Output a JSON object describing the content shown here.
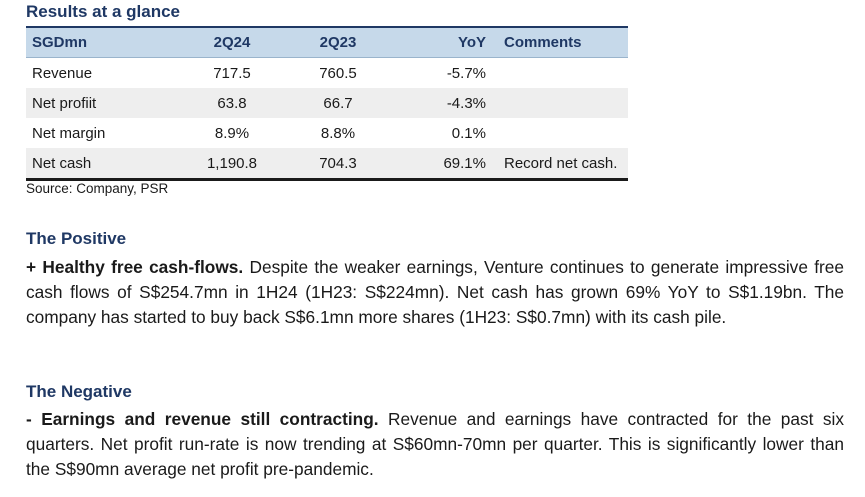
{
  "title": "Results at a glance",
  "table": {
    "headers": [
      "SGDmn",
      "2Q24",
      "2Q23",
      "YoY",
      "Comments"
    ],
    "rows": [
      [
        "Revenue",
        "717.5",
        "760.5",
        "-5.7%",
        ""
      ],
      [
        "Net profiit",
        "63.8",
        "66.7",
        "-4.3%",
        ""
      ],
      [
        "Net margin",
        "8.9%",
        "8.8%",
        "0.1%",
        ""
      ],
      [
        "Net cash",
        "1,190.8",
        "704.3",
        "69.1%",
        "Record net cash."
      ]
    ]
  },
  "source": "Source: Company, PSR",
  "positive": {
    "heading": "The Positive",
    "lead": "+ Healthy free cash-flows.",
    "body": " Despite the weaker earnings, Venture continues to generate impressive free cash flows of S$254.7mn in 1H24 (1H23: S$224mn). Net cash has grown 69% YoY to S$1.19bn. The company has started to buy back S$6.1mn more shares (1H23: S$0.7mn) with its cash pile."
  },
  "negative": {
    "heading": "The Negative",
    "lead": "- Earnings and revenue still contracting.",
    "body": " Revenue and earnings have contracted for the past six quarters. Net profit run-rate is now trending at S$60mn-70mn per quarter. This is significantly lower than the S$90mn average net profit pre-pandemic."
  }
}
